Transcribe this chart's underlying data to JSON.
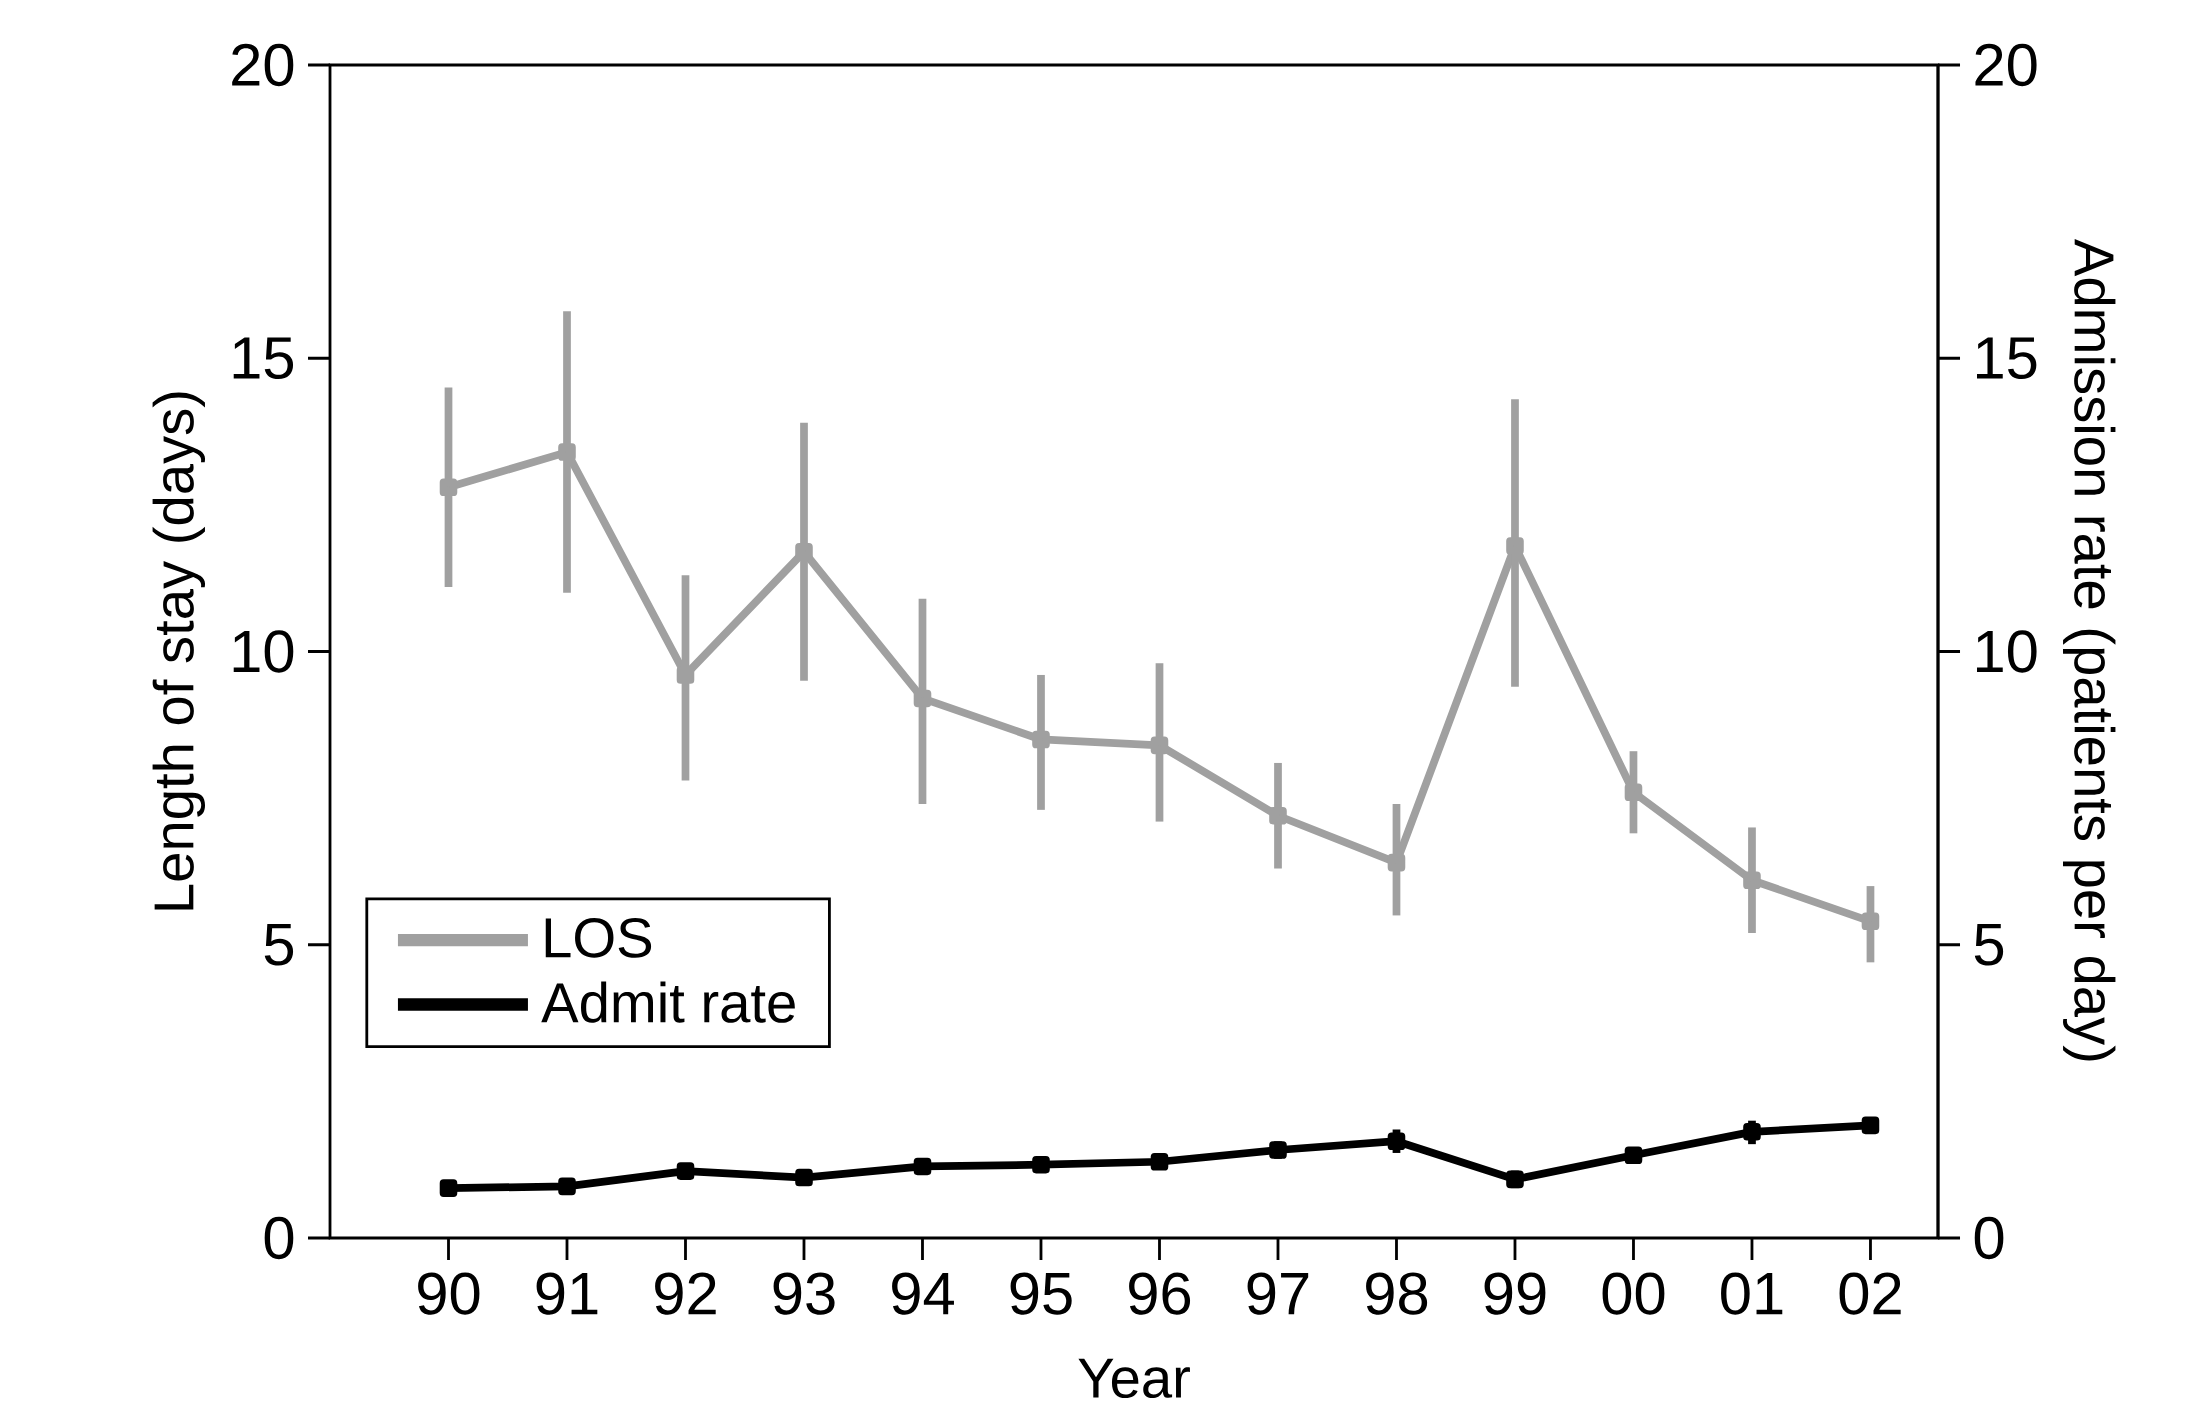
{
  "chart_data": {
    "type": "line",
    "categories": [
      "90",
      "91",
      "92",
      "93",
      "94",
      "95",
      "96",
      "97",
      "98",
      "99",
      "00",
      "01",
      "02"
    ],
    "xlabel": "Year",
    "ylabel": "Length of stay (days)",
    "y2label": "Admission rate (patients per day)",
    "ylim": [
      0,
      20
    ],
    "yticks": [
      0,
      5,
      10,
      15,
      20
    ],
    "y2lim": [
      0,
      20
    ],
    "y2ticks": [
      0,
      5,
      10,
      15,
      20
    ],
    "legend": "left",
    "marker": "square",
    "series": [
      {
        "name": "LOS",
        "color": "#a0a0a0",
        "values": [
          12.8,
          13.4,
          9.6,
          11.7,
          9.2,
          8.5,
          8.4,
          7.2,
          6.4,
          11.8,
          7.6,
          6.1,
          5.4
        ],
        "errors": [
          [
            11.1,
            14.5
          ],
          [
            11.0,
            15.8
          ],
          [
            7.8,
            11.3
          ],
          [
            9.5,
            13.9
          ],
          [
            7.4,
            10.9
          ],
          [
            7.3,
            9.6
          ],
          [
            7.1,
            9.8
          ],
          [
            6.3,
            8.1
          ],
          [
            5.5,
            7.4
          ],
          [
            9.4,
            14.3
          ],
          [
            6.9,
            8.3
          ],
          [
            5.2,
            7.0
          ],
          [
            4.7,
            6.0
          ]
        ]
      },
      {
        "name": "Admit rate",
        "color": "#000000",
        "axis": "y2",
        "values": [
          0.85,
          0.88,
          1.14,
          1.03,
          1.22,
          1.25,
          1.3,
          1.5,
          1.65,
          1.0,
          1.41,
          1.81,
          1.92
        ],
        "errors": [
          null,
          null,
          null,
          null,
          null,
          null,
          null,
          [
            1.35,
            1.65
          ],
          [
            1.45,
            1.85
          ],
          [
            0.85,
            1.15
          ],
          null,
          [
            1.6,
            2.0
          ],
          null
        ]
      }
    ]
  }
}
